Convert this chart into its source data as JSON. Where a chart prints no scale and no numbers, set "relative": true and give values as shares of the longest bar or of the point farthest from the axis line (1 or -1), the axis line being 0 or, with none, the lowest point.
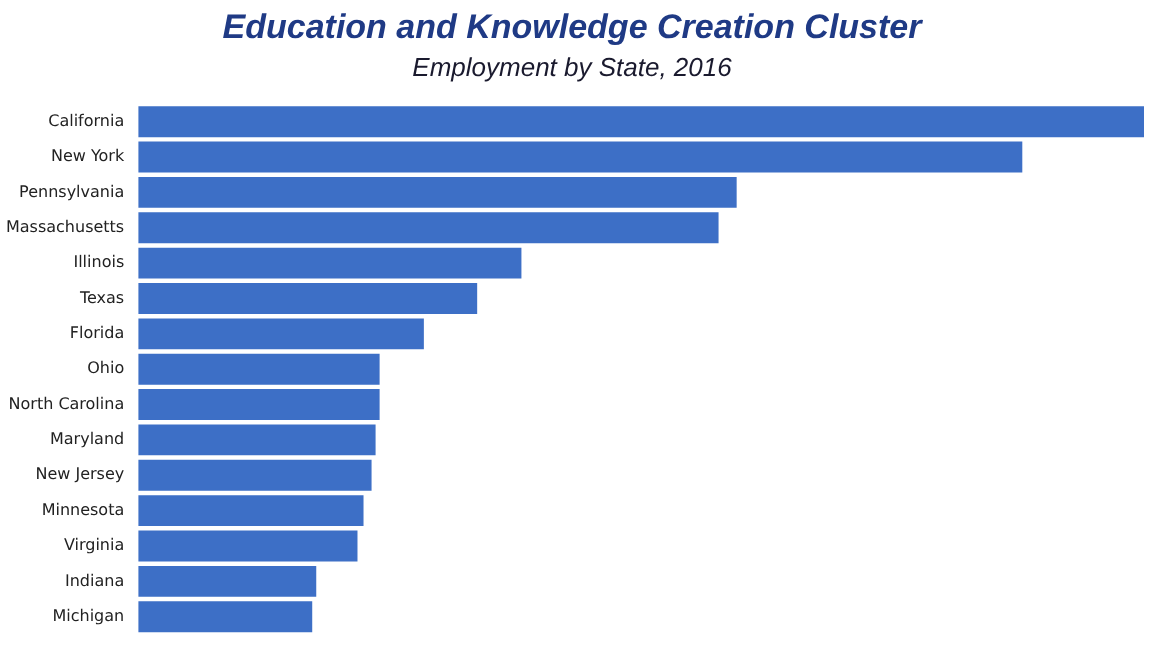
{
  "chart_data": {
    "type": "bar",
    "orientation": "horizontal",
    "relative": true,
    "title": "Education and Knowledge Creation Cluster",
    "subtitle": "Employment by State, 2016",
    "categories": [
      "California",
      "New York",
      "Pennsylvania",
      "Massachusetts",
      "Illinois",
      "Texas",
      "Florida",
      "Ohio",
      "North Carolina",
      "Maryland",
      "New Jersey",
      "Minnesota",
      "Virginia",
      "Indiana",
      "Michigan"
    ],
    "values": [
      1,
      0.879,
      0.595,
      0.577,
      0.381,
      0.337,
      0.284,
      0.24,
      0.24,
      0.236,
      0.232,
      0.224,
      0.218,
      0.177,
      0.173
    ],
    "color": "#3d6fc6",
    "grid": false,
    "legend": false
  }
}
